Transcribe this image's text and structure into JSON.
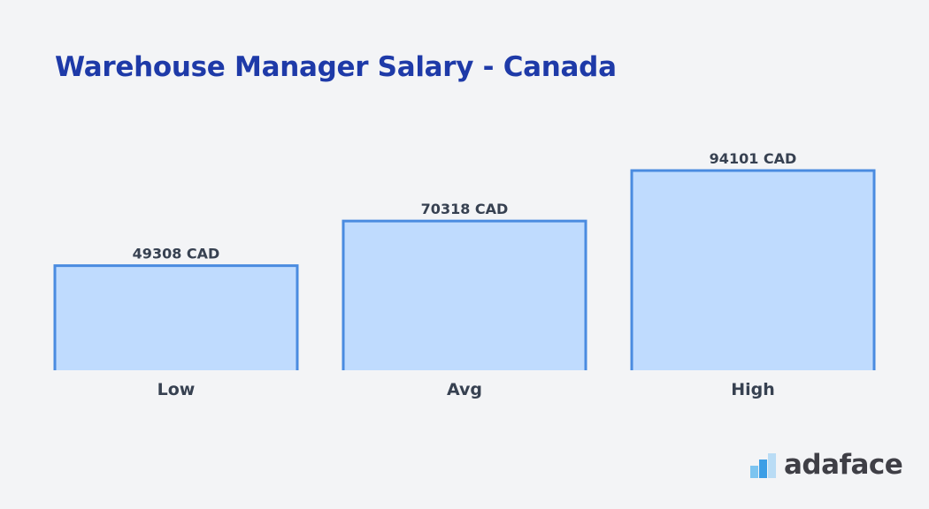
{
  "chart_data": {
    "type": "bar",
    "title": "Warehouse Manager Salary - Canada",
    "categories": [
      "Low",
      "Avg",
      "High"
    ],
    "values": [
      49308,
      70318,
      94101
    ],
    "value_labels": [
      "49308 CAD",
      "70318 CAD",
      "94101 CAD"
    ],
    "unit": "CAD",
    "xlabel": "",
    "ylabel": "",
    "ylim": [
      0,
      94101
    ],
    "grid": false,
    "legend": "none"
  },
  "logo": {
    "text": "adaface",
    "icon": "adaface-bars-icon"
  },
  "colors": {
    "title": "#1e3aa8",
    "bar_fill": "#bfdbfe",
    "bar_stroke": "#4a8be0",
    "label": "#374151",
    "background": "#f3f4f6"
  }
}
